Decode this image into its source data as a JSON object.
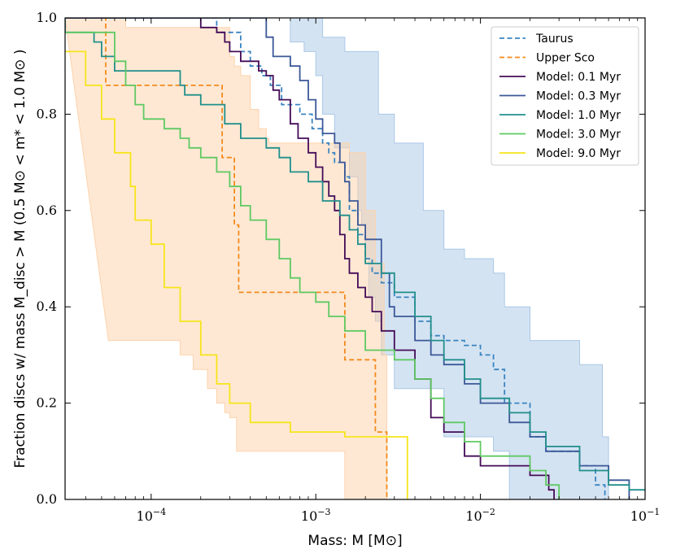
{
  "chart_data": {
    "type": "line",
    "subtype": "step",
    "xscale": "log",
    "xlim": [
      3e-05,
      0.1
    ],
    "ylim": [
      0.0,
      1.0
    ],
    "xlabel": "Mass: M [M⊙]",
    "ylabel": "Fraction discs w/ mass M_disc > M (0.5 M⊙ < m* < 1.0 M⊙ )",
    "x_ticks": [
      {
        "value": 0.0001,
        "base": "10",
        "exp": "−4"
      },
      {
        "value": 0.001,
        "base": "10",
        "exp": "−3"
      },
      {
        "value": 0.01,
        "base": "10",
        "exp": "−2"
      },
      {
        "value": 0.1,
        "base": "10",
        "exp": "−1"
      }
    ],
    "y_ticks": [
      "0.0",
      "0.2",
      "0.4",
      "0.6",
      "0.8",
      "1.0"
    ],
    "legend_position": "top-right",
    "bands": [
      {
        "name": "Taurus range",
        "color": "#a9c8e6",
        "upper": [
          [
            3e-05,
            1.0
          ],
          [
            0.00095,
            1.0
          ],
          [
            0.0011,
            0.96
          ],
          [
            0.0015,
            0.93
          ],
          [
            0.0024,
            0.8
          ],
          [
            0.003,
            0.74
          ],
          [
            0.0045,
            0.6
          ],
          [
            0.006,
            0.52
          ],
          [
            0.008,
            0.5
          ],
          [
            0.012,
            0.47
          ],
          [
            0.014,
            0.4
          ],
          [
            0.02,
            0.33
          ],
          [
            0.04,
            0.28
          ],
          [
            0.055,
            0.13
          ],
          [
            0.06,
            0.0
          ]
        ],
        "lower": [
          [
            0.00055,
            1.0
          ],
          [
            0.0007,
            0.95
          ],
          [
            0.00085,
            0.93
          ],
          [
            0.001,
            0.88
          ],
          [
            0.0011,
            0.8
          ],
          [
            0.0013,
            0.73
          ],
          [
            0.0016,
            0.67
          ],
          [
            0.0018,
            0.6
          ],
          [
            0.0019,
            0.57
          ],
          [
            0.002,
            0.5
          ],
          [
            0.0021,
            0.42
          ],
          [
            0.0023,
            0.37
          ],
          [
            0.0025,
            0.3
          ],
          [
            0.003,
            0.23
          ],
          [
            0.006,
            0.13
          ],
          [
            0.012,
            0.1
          ],
          [
            0.015,
            0.0
          ]
        ]
      },
      {
        "name": "Upper Sco range",
        "color": "#fdd2aa",
        "upper": [
          [
            3e-05,
            1.0
          ],
          [
            7e-05,
            0.98
          ],
          [
            0.00027,
            0.98
          ],
          [
            0.0003,
            0.92
          ],
          [
            0.00032,
            0.9
          ],
          [
            0.00035,
            0.88
          ],
          [
            0.0004,
            0.81
          ],
          [
            0.00045,
            0.77
          ],
          [
            0.0005,
            0.75
          ],
          [
            0.00052,
            0.74
          ],
          [
            0.0015,
            0.74
          ],
          [
            0.0016,
            0.72
          ],
          [
            0.002,
            0.6
          ],
          [
            0.0023,
            0.49
          ],
          [
            0.0026,
            0.3
          ],
          [
            0.0027,
            0.0
          ]
        ],
        "lower": [
          [
            5.5e-05,
            0.33
          ],
          [
            0.00012,
            0.33
          ],
          [
            0.00015,
            0.3
          ],
          [
            0.00018,
            0.27
          ],
          [
            0.00022,
            0.23
          ],
          [
            0.00025,
            0.2
          ],
          [
            0.00028,
            0.18
          ],
          [
            0.0003,
            0.17
          ],
          [
            0.00033,
            0.1
          ],
          [
            0.00055,
            0.1
          ],
          [
            0.0015,
            0.07
          ],
          [
            0.0015,
            0.0
          ]
        ]
      }
    ],
    "series": [
      {
        "name": "Taurus",
        "color": "#3a84c0",
        "dashed": true,
        "points": [
          [
            3e-05,
            1.0
          ],
          [
            0.0002,
            1.0
          ],
          [
            0.00025,
            0.97
          ],
          [
            0.00035,
            0.93
          ],
          [
            0.0004,
            0.9
          ],
          [
            0.00047,
            0.88
          ],
          [
            0.00053,
            0.86
          ],
          [
            0.00062,
            0.82
          ],
          [
            0.0008,
            0.8
          ],
          [
            0.00095,
            0.77
          ],
          [
            0.0011,
            0.74
          ],
          [
            0.0012,
            0.72
          ],
          [
            0.0013,
            0.7
          ],
          [
            0.0015,
            0.67
          ],
          [
            0.0016,
            0.6
          ],
          [
            0.0018,
            0.55
          ],
          [
            0.002,
            0.5
          ],
          [
            0.0022,
            0.47
          ],
          [
            0.0025,
            0.45
          ],
          [
            0.003,
            0.42
          ],
          [
            0.004,
            0.37
          ],
          [
            0.005,
            0.34
          ],
          [
            0.006,
            0.33
          ],
          [
            0.008,
            0.32
          ],
          [
            0.01,
            0.3
          ],
          [
            0.012,
            0.27
          ],
          [
            0.014,
            0.2
          ],
          [
            0.02,
            0.13
          ],
          [
            0.025,
            0.1
          ],
          [
            0.04,
            0.07
          ],
          [
            0.05,
            0.03
          ],
          [
            0.057,
            0.0
          ]
        ]
      },
      {
        "name": "Upper Sco",
        "color": "#f28a1c",
        "dashed": true,
        "points": [
          [
            3e-05,
            1.0
          ],
          [
            5.3e-05,
            1.0
          ],
          [
            5.3e-05,
            0.86
          ],
          [
            0.00027,
            0.86
          ],
          [
            0.00027,
            0.71
          ],
          [
            0.00032,
            0.71
          ],
          [
            0.00032,
            0.57
          ],
          [
            0.00034,
            0.57
          ],
          [
            0.00034,
            0.43
          ],
          [
            0.00075,
            0.43
          ],
          [
            0.00075,
            0.43
          ],
          [
            0.0015,
            0.43
          ],
          [
            0.0015,
            0.29
          ],
          [
            0.0023,
            0.29
          ],
          [
            0.0023,
            0.14
          ],
          [
            0.0027,
            0.14
          ],
          [
            0.0027,
            0.0
          ]
        ]
      },
      {
        "name": "Model: 0.1 Myr",
        "color": "#440b57",
        "dashed": false,
        "points": [
          [
            3e-05,
            1.0
          ],
          [
            0.0002,
            0.98
          ],
          [
            0.00025,
            0.97
          ],
          [
            0.00028,
            0.95
          ],
          [
            0.0003,
            0.93
          ],
          [
            0.00035,
            0.91
          ],
          [
            0.00045,
            0.89
          ],
          [
            0.0005,
            0.88
          ],
          [
            0.00055,
            0.85
          ],
          [
            0.0006,
            0.83
          ],
          [
            0.0007,
            0.78
          ],
          [
            0.00078,
            0.75
          ],
          [
            0.0009,
            0.72
          ],
          [
            0.001,
            0.69
          ],
          [
            0.0011,
            0.66
          ],
          [
            0.0012,
            0.63
          ],
          [
            0.0013,
            0.6
          ],
          [
            0.0014,
            0.55
          ],
          [
            0.0015,
            0.5
          ],
          [
            0.0016,
            0.47
          ],
          [
            0.0018,
            0.44
          ],
          [
            0.002,
            0.42
          ],
          [
            0.0022,
            0.39
          ],
          [
            0.0025,
            0.35
          ],
          [
            0.003,
            0.31
          ],
          [
            0.004,
            0.25
          ],
          [
            0.005,
            0.17
          ],
          [
            0.006,
            0.14
          ],
          [
            0.008,
            0.09
          ],
          [
            0.01,
            0.07
          ],
          [
            0.02,
            0.05
          ],
          [
            0.026,
            0.02
          ],
          [
            0.028,
            0.0
          ]
        ]
      },
      {
        "name": "Model: 0.3 Myr",
        "color": "#3b5898",
        "dashed": false,
        "points": [
          [
            3e-05,
            1.0
          ],
          [
            0.00045,
            1.0
          ],
          [
            0.0005,
            0.96
          ],
          [
            0.00055,
            0.92
          ],
          [
            0.0007,
            0.9
          ],
          [
            0.0008,
            0.87
          ],
          [
            0.0009,
            0.83
          ],
          [
            0.001,
            0.79
          ],
          [
            0.0011,
            0.76
          ],
          [
            0.0013,
            0.74
          ],
          [
            0.0014,
            0.7
          ],
          [
            0.0015,
            0.66
          ],
          [
            0.0016,
            0.62
          ],
          [
            0.0018,
            0.57
          ],
          [
            0.002,
            0.54
          ],
          [
            0.0025,
            0.47
          ],
          [
            0.0028,
            0.4
          ],
          [
            0.003,
            0.38
          ],
          [
            0.004,
            0.33
          ],
          [
            0.005,
            0.3
          ],
          [
            0.006,
            0.28
          ],
          [
            0.008,
            0.24
          ],
          [
            0.01,
            0.2
          ],
          [
            0.015,
            0.16
          ],
          [
            0.02,
            0.13
          ],
          [
            0.025,
            0.1
          ],
          [
            0.04,
            0.07
          ],
          [
            0.06,
            0.04
          ],
          [
            0.08,
            0.0
          ]
        ]
      },
      {
        "name": "Model: 1.0 Myr",
        "color": "#218f8b",
        "dashed": false,
        "points": [
          [
            3e-05,
            1.0
          ],
          [
            3e-05,
            0.97
          ],
          [
            4.5e-05,
            0.95
          ],
          [
            5e-05,
            0.92
          ],
          [
            6e-05,
            0.89
          ],
          [
            0.00015,
            0.86
          ],
          [
            0.00016,
            0.84
          ],
          [
            0.0002,
            0.82
          ],
          [
            0.00028,
            0.78
          ],
          [
            0.00035,
            0.75
          ],
          [
            0.0005,
            0.73
          ],
          [
            0.0006,
            0.71
          ],
          [
            0.0007,
            0.68
          ],
          [
            0.0009,
            0.66
          ],
          [
            0.0011,
            0.62
          ],
          [
            0.0014,
            0.59
          ],
          [
            0.0016,
            0.56
          ],
          [
            0.0018,
            0.53
          ],
          [
            0.002,
            0.49
          ],
          [
            0.0025,
            0.47
          ],
          [
            0.003,
            0.43
          ],
          [
            0.004,
            0.38
          ],
          [
            0.005,
            0.33
          ],
          [
            0.006,
            0.29
          ],
          [
            0.008,
            0.25
          ],
          [
            0.01,
            0.21
          ],
          [
            0.015,
            0.18
          ],
          [
            0.02,
            0.14
          ],
          [
            0.025,
            0.11
          ],
          [
            0.04,
            0.06
          ],
          [
            0.06,
            0.03
          ],
          [
            0.08,
            0.02
          ],
          [
            0.1,
            0.02
          ]
        ]
      },
      {
        "name": "Model: 3.0 Myr",
        "color": "#5ec962",
        "dashed": false,
        "points": [
          [
            3e-05,
            0.97
          ],
          [
            6e-05,
            0.91
          ],
          [
            7e-05,
            0.86
          ],
          [
            8e-05,
            0.82
          ],
          [
            9e-05,
            0.79
          ],
          [
            0.00012,
            0.77
          ],
          [
            0.00015,
            0.75
          ],
          [
            0.00017,
            0.73
          ],
          [
            0.0002,
            0.71
          ],
          [
            0.00025,
            0.68
          ],
          [
            0.0003,
            0.65
          ],
          [
            0.00035,
            0.61
          ],
          [
            0.0004,
            0.58
          ],
          [
            0.0005,
            0.54
          ],
          [
            0.0006,
            0.5
          ],
          [
            0.0007,
            0.46
          ],
          [
            0.0008,
            0.43
          ],
          [
            0.001,
            0.41
          ],
          [
            0.0012,
            0.38
          ],
          [
            0.0015,
            0.35
          ],
          [
            0.002,
            0.31
          ],
          [
            0.003,
            0.29
          ],
          [
            0.004,
            0.25
          ],
          [
            0.005,
            0.21
          ],
          [
            0.006,
            0.16
          ],
          [
            0.008,
            0.12
          ],
          [
            0.01,
            0.09
          ],
          [
            0.02,
            0.06
          ],
          [
            0.025,
            0.03
          ],
          [
            0.03,
            0.0
          ]
        ]
      },
      {
        "name": "Model: 9.0 Myr",
        "color": "#f6e51a",
        "dashed": false,
        "points": [
          [
            3e-05,
            0.93
          ],
          [
            4e-05,
            0.93
          ],
          [
            4e-05,
            0.86
          ],
          [
            5e-05,
            0.79
          ],
          [
            6e-05,
            0.72
          ],
          [
            7.5e-05,
            0.65
          ],
          [
            8e-05,
            0.58
          ],
          [
            0.0001,
            0.53
          ],
          [
            0.00012,
            0.44
          ],
          [
            0.00015,
            0.37
          ],
          [
            0.0002,
            0.3
          ],
          [
            0.00025,
            0.24
          ],
          [
            0.0003,
            0.2
          ],
          [
            0.0004,
            0.16
          ],
          [
            0.0007,
            0.14
          ],
          [
            0.0015,
            0.13
          ],
          [
            0.0025,
            0.13
          ],
          [
            0.0036,
            0.13
          ],
          [
            0.0036,
            0.0
          ]
        ]
      }
    ]
  }
}
